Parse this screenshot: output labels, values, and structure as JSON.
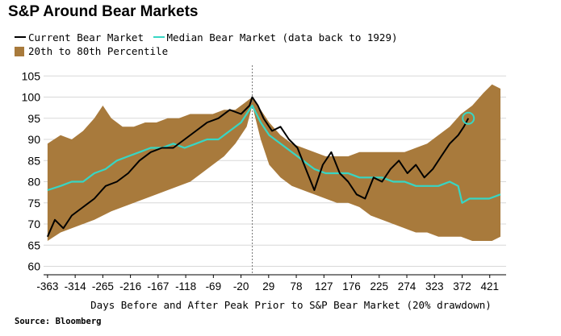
{
  "chart_data": {
    "type": "line",
    "title": "S&P Around Bear Markets",
    "legend": {
      "current": "Current Bear Market",
      "median": "Median Bear Market (data back to 1929)",
      "band": "20th to 80th Percentile",
      "placement": "top-left"
    },
    "xlabel": "Days Before and After Peak Prior to S&P Bear Market (20% drawdown)",
    "source": "Source: Bloomberg",
    "xlim": [
      -370,
      450
    ],
    "ylim": [
      58,
      106
    ],
    "x_ticks": [
      -363,
      -314,
      -265,
      -216,
      -167,
      -118,
      -69,
      -20,
      29,
      78,
      127,
      176,
      225,
      274,
      323,
      372,
      421
    ],
    "y_ticks": [
      60,
      65,
      70,
      75,
      80,
      85,
      90,
      95,
      100,
      105
    ],
    "grid": "horizontal",
    "peak_marker_x": 0,
    "colors": {
      "current": "#000000",
      "median": "#37d6c4",
      "band": "#a87a3c",
      "grid": "#d8d8d8",
      "marker": "#37d6c4"
    },
    "series": [
      {
        "name": "Current Bear Market",
        "x": [
          -363,
          -350,
          -335,
          -320,
          -300,
          -280,
          -260,
          -240,
          -220,
          -200,
          -180,
          -160,
          -140,
          -120,
          -100,
          -80,
          -60,
          -40,
          -20,
          -5,
          0,
          10,
          20,
          35,
          50,
          65,
          80,
          95,
          110,
          125,
          140,
          155,
          170,
          185,
          200,
          215,
          230,
          245,
          260,
          275,
          290,
          305,
          320,
          335,
          350,
          365,
          375,
          383
        ],
        "values": [
          67,
          71,
          69,
          72,
          74,
          76,
          79,
          80,
          82,
          85,
          87,
          88,
          88,
          90,
          92,
          94,
          95,
          97,
          96,
          98,
          100,
          98,
          95,
          92,
          93,
          90,
          88,
          83,
          78,
          84,
          87,
          82,
          80,
          77,
          76,
          81,
          80,
          83,
          85,
          82,
          84,
          81,
          83,
          86,
          89,
          91,
          93,
          95
        ]
      },
      {
        "name": "Median Bear Market (data back to 1929)",
        "x": [
          -363,
          -340,
          -320,
          -300,
          -280,
          -260,
          -240,
          -220,
          -200,
          -180,
          -160,
          -140,
          -120,
          -100,
          -80,
          -60,
          -40,
          -20,
          0,
          15,
          30,
          50,
          70,
          90,
          110,
          130,
          150,
          170,
          190,
          210,
          230,
          250,
          270,
          290,
          310,
          330,
          350,
          365,
          372,
          385,
          400,
          420,
          440
        ],
        "values": [
          78,
          79,
          80,
          80,
          82,
          83,
          85,
          86,
          87,
          88,
          88,
          89,
          88,
          89,
          90,
          90,
          92,
          94,
          98,
          94,
          91,
          89,
          87,
          85,
          83,
          82,
          82,
          82,
          81,
          81,
          81,
          80,
          80,
          79,
          79,
          79,
          80,
          79,
          75,
          76,
          76,
          76,
          77
        ]
      },
      {
        "name": "20th to 80th Percentile",
        "x": [
          -363,
          -340,
          -320,
          -300,
          -280,
          -265,
          -250,
          -230,
          -210,
          -190,
          -170,
          -150,
          -130,
          -110,
          -90,
          -70,
          -50,
          -30,
          -10,
          0,
          15,
          30,
          50,
          70,
          90,
          110,
          130,
          150,
          170,
          190,
          210,
          230,
          250,
          270,
          290,
          310,
          330,
          350,
          370,
          390,
          410,
          425,
          440
        ],
        "upper": [
          89,
          91,
          90,
          92,
          95,
          98,
          95,
          93,
          93,
          94,
          94,
          95,
          95,
          96,
          96,
          96,
          97,
          97,
          99,
          100,
          97,
          94,
          91,
          89,
          88,
          87,
          86,
          86,
          86,
          87,
          87,
          87,
          87,
          87,
          88,
          89,
          91,
          93,
          96,
          98,
          101,
          103,
          102
        ],
        "lower": [
          66,
          68,
          69,
          70,
          71,
          72,
          73,
          74,
          75,
          76,
          77,
          78,
          79,
          80,
          82,
          84,
          86,
          89,
          93,
          98,
          90,
          84,
          81,
          79,
          78,
          77,
          76,
          75,
          75,
          74,
          72,
          71,
          70,
          69,
          68,
          68,
          67,
          67,
          67,
          66,
          66,
          66,
          67
        ]
      }
    ],
    "annotations": [
      {
        "type": "circle-marker",
        "x": 383,
        "y": 95
      }
    ]
  }
}
